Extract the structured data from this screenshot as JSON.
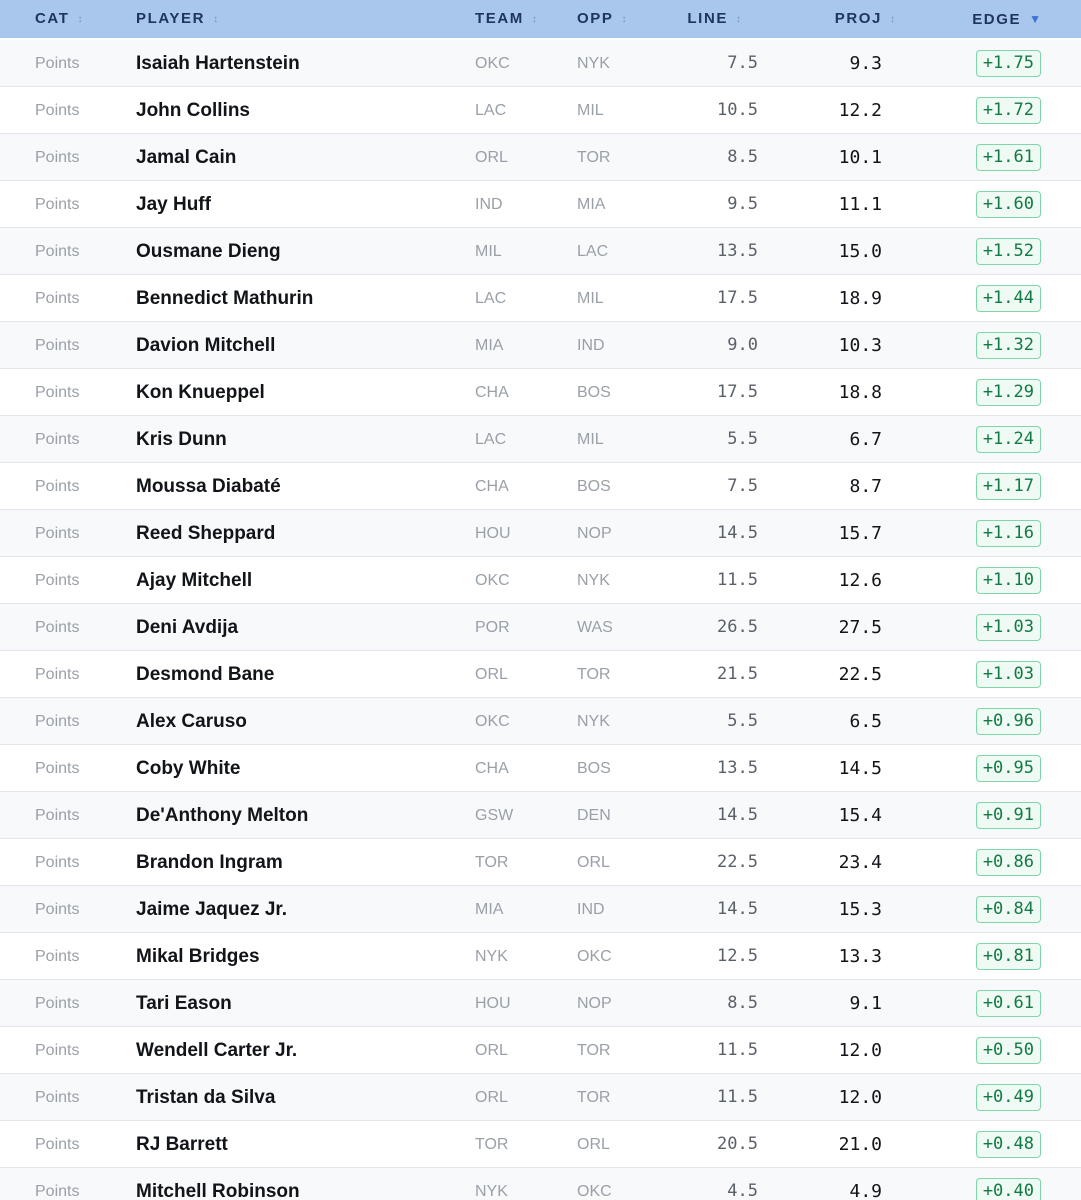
{
  "header": {
    "columns": [
      {
        "label": "CAT",
        "sort": "↕"
      },
      {
        "label": "PLAYER",
        "sort": "↕"
      },
      {
        "label": "TEAM",
        "sort": "↕"
      },
      {
        "label": "OPP",
        "sort": "↕"
      },
      {
        "label": "LINE",
        "sort": "↕"
      },
      {
        "label": "PROJ",
        "sort": "↕"
      },
      {
        "label": "EDGE",
        "sort": "▼"
      }
    ]
  },
  "colors": {
    "header_bg": "#a9c6ec",
    "edge_positive": "#127a44",
    "edge_badge_bg": "#eefaf3",
    "edge_badge_border": "#7fd6a8",
    "active_sort": "#3b72d6"
  },
  "rows": [
    {
      "cat": "Points",
      "player": "Isaiah Hartenstein",
      "team": "OKC",
      "opp": "NYK",
      "line": "7.5",
      "proj": "9.3",
      "edge": "+1.75"
    },
    {
      "cat": "Points",
      "player": "John Collins",
      "team": "LAC",
      "opp": "MIL",
      "line": "10.5",
      "proj": "12.2",
      "edge": "+1.72"
    },
    {
      "cat": "Points",
      "player": "Jamal Cain",
      "team": "ORL",
      "opp": "TOR",
      "line": "8.5",
      "proj": "10.1",
      "edge": "+1.61"
    },
    {
      "cat": "Points",
      "player": "Jay Huff",
      "team": "IND",
      "opp": "MIA",
      "line": "9.5",
      "proj": "11.1",
      "edge": "+1.60"
    },
    {
      "cat": "Points",
      "player": "Ousmane Dieng",
      "team": "MIL",
      "opp": "LAC",
      "line": "13.5",
      "proj": "15.0",
      "edge": "+1.52"
    },
    {
      "cat": "Points",
      "player": "Bennedict Mathurin",
      "team": "LAC",
      "opp": "MIL",
      "line": "17.5",
      "proj": "18.9",
      "edge": "+1.44"
    },
    {
      "cat": "Points",
      "player": "Davion Mitchell",
      "team": "MIA",
      "opp": "IND",
      "line": "9.0",
      "proj": "10.3",
      "edge": "+1.32"
    },
    {
      "cat": "Points",
      "player": "Kon Knueppel",
      "team": "CHA",
      "opp": "BOS",
      "line": "17.5",
      "proj": "18.8",
      "edge": "+1.29"
    },
    {
      "cat": "Points",
      "player": "Kris Dunn",
      "team": "LAC",
      "opp": "MIL",
      "line": "5.5",
      "proj": "6.7",
      "edge": "+1.24"
    },
    {
      "cat": "Points",
      "player": "Moussa Diabaté",
      "team": "CHA",
      "opp": "BOS",
      "line": "7.5",
      "proj": "8.7",
      "edge": "+1.17"
    },
    {
      "cat": "Points",
      "player": "Reed Sheppard",
      "team": "HOU",
      "opp": "NOP",
      "line": "14.5",
      "proj": "15.7",
      "edge": "+1.16"
    },
    {
      "cat": "Points",
      "player": "Ajay Mitchell",
      "team": "OKC",
      "opp": "NYK",
      "line": "11.5",
      "proj": "12.6",
      "edge": "+1.10"
    },
    {
      "cat": "Points",
      "player": "Deni Avdija",
      "team": "POR",
      "opp": "WAS",
      "line": "26.5",
      "proj": "27.5",
      "edge": "+1.03"
    },
    {
      "cat": "Points",
      "player": "Desmond Bane",
      "team": "ORL",
      "opp": "TOR",
      "line": "21.5",
      "proj": "22.5",
      "edge": "+1.03"
    },
    {
      "cat": "Points",
      "player": "Alex Caruso",
      "team": "OKC",
      "opp": "NYK",
      "line": "5.5",
      "proj": "6.5",
      "edge": "+0.96"
    },
    {
      "cat": "Points",
      "player": "Coby White",
      "team": "CHA",
      "opp": "BOS",
      "line": "13.5",
      "proj": "14.5",
      "edge": "+0.95"
    },
    {
      "cat": "Points",
      "player": "De'Anthony Melton",
      "team": "GSW",
      "opp": "DEN",
      "line": "14.5",
      "proj": "15.4",
      "edge": "+0.91"
    },
    {
      "cat": "Points",
      "player": "Brandon Ingram",
      "team": "TOR",
      "opp": "ORL",
      "line": "22.5",
      "proj": "23.4",
      "edge": "+0.86"
    },
    {
      "cat": "Points",
      "player": "Jaime Jaquez Jr.",
      "team": "MIA",
      "opp": "IND",
      "line": "14.5",
      "proj": "15.3",
      "edge": "+0.84"
    },
    {
      "cat": "Points",
      "player": "Mikal Bridges",
      "team": "NYK",
      "opp": "OKC",
      "line": "12.5",
      "proj": "13.3",
      "edge": "+0.81"
    },
    {
      "cat": "Points",
      "player": "Tari Eason",
      "team": "HOU",
      "opp": "NOP",
      "line": "8.5",
      "proj": "9.1",
      "edge": "+0.61"
    },
    {
      "cat": "Points",
      "player": "Wendell Carter Jr.",
      "team": "ORL",
      "opp": "TOR",
      "line": "11.5",
      "proj": "12.0",
      "edge": "+0.50"
    },
    {
      "cat": "Points",
      "player": "Tristan da Silva",
      "team": "ORL",
      "opp": "TOR",
      "line": "11.5",
      "proj": "12.0",
      "edge": "+0.49"
    },
    {
      "cat": "Points",
      "player": "RJ Barrett",
      "team": "TOR",
      "opp": "ORL",
      "line": "20.5",
      "proj": "21.0",
      "edge": "+0.48"
    },
    {
      "cat": "Points",
      "player": "Mitchell Robinson",
      "team": "NYK",
      "opp": "OKC",
      "line": "4.5",
      "proj": "4.9",
      "edge": "+0.40"
    }
  ]
}
